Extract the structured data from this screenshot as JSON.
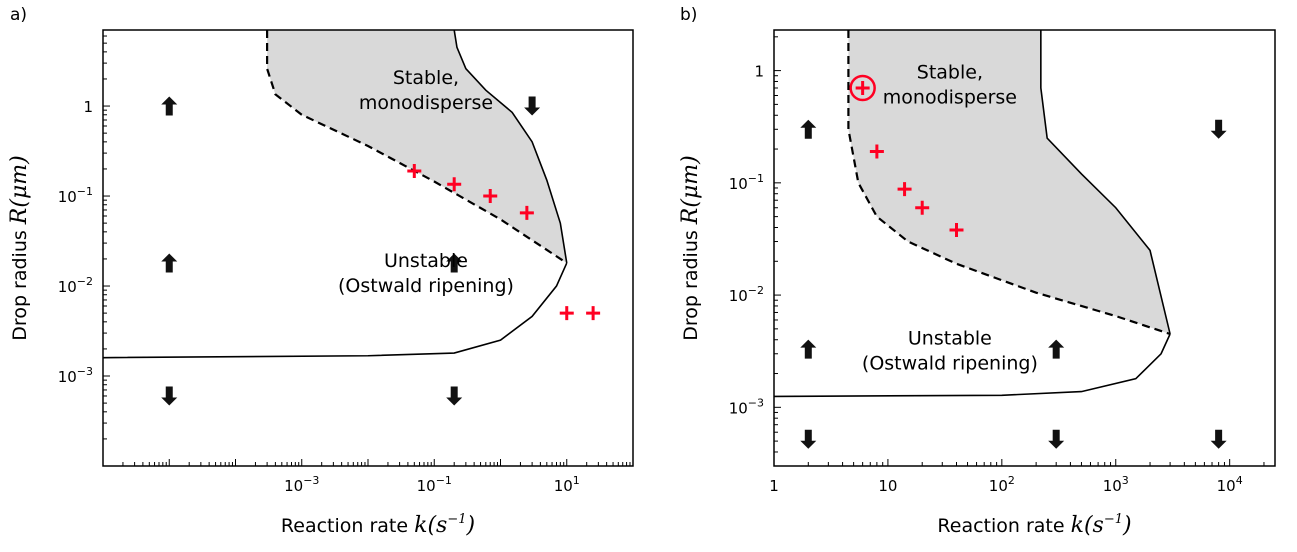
{
  "chart_data": [
    {
      "panel_label": "a)",
      "type": "scatter",
      "xscale": "log",
      "yscale": "log",
      "xlim": [
        1e-06,
        100
      ],
      "ylim": [
        0.0001,
        7
      ],
      "xticks": [
        {
          "value": 0.001,
          "label": "10^-3"
        },
        {
          "value": 0.1,
          "label": "10^-1"
        },
        {
          "value": 10,
          "label": "10^1"
        }
      ],
      "yticks": [
        {
          "value": 0.001,
          "label": "10^-3"
        },
        {
          "value": 0.01,
          "label": "10^-2"
        },
        {
          "value": 0.1,
          "label": "10^-1"
        },
        {
          "value": 1,
          "label": "1"
        }
      ],
      "xlabel": "Reaction rate",
      "xlabel_math": "k(s^-1)",
      "ylabel": "Drop radius",
      "ylabel_math": "R(μm)",
      "annotations": [
        {
          "lines": [
            "Stable,",
            "monodisperse"
          ],
          "x": 0.075,
          "y": 1.5
        },
        {
          "lines": [
            "Unstable",
            "(Ostwald ripening)"
          ],
          "x": 0.075,
          "y": 0.014
        }
      ],
      "stable_region_fill": "#d9d9d9",
      "dashed_boundary": [
        [
          0.0003,
          7
        ],
        [
          0.0003,
          2.6
        ],
        [
          0.0004,
          1.35
        ],
        [
          0.001,
          0.8
        ],
        [
          0.01,
          0.36
        ],
        [
          0.1,
          0.145
        ],
        [
          1,
          0.055
        ],
        [
          10,
          0.018
        ]
      ],
      "upper_solid_boundary": [
        [
          0.2,
          7
        ],
        [
          0.22,
          4.5
        ],
        [
          0.3,
          2.6
        ],
        [
          0.6,
          1.5
        ],
        [
          1.5,
          0.85
        ],
        [
          3,
          0.4
        ],
        [
          5,
          0.15
        ],
        [
          8,
          0.05
        ],
        [
          10,
          0.018
        ]
      ],
      "lower_solid_boundary": [
        [
          1e-06,
          0.0016
        ],
        [
          0.01,
          0.00168
        ],
        [
          0.2,
          0.0018
        ],
        [
          1,
          0.0025
        ],
        [
          3,
          0.0046
        ],
        [
          7,
          0.01
        ],
        [
          10,
          0.018
        ]
      ],
      "series": [
        {
          "name": "",
          "marker": "plus",
          "color": "#ff0022",
          "points": [
            [
              0.05,
              0.19
            ],
            [
              0.2,
              0.135
            ],
            [
              0.7,
              0.1
            ],
            [
              2.5,
              0.065
            ],
            [
              10,
              0.005
            ],
            [
              25,
              0.005
            ]
          ]
        }
      ],
      "arrows": [
        {
          "x": 1e-05,
          "y": 1,
          "dir": "up"
        },
        {
          "x": 1e-05,
          "y": 0.018,
          "dir": "up"
        },
        {
          "x": 1e-05,
          "y": 0.0006,
          "dir": "down"
        },
        {
          "x": 0.2,
          "y": 0.018,
          "dir": "up"
        },
        {
          "x": 0.2,
          "y": 0.0006,
          "dir": "down"
        },
        {
          "x": 3,
          "y": 1,
          "dir": "down"
        }
      ]
    },
    {
      "panel_label": "b)",
      "type": "scatter",
      "xscale": "log",
      "yscale": "log",
      "xlim": [
        1,
        25000
      ],
      "ylim": [
        0.0003,
        2.3
      ],
      "xticks": [
        {
          "value": 1,
          "label": "1"
        },
        {
          "value": 10,
          "label": "10"
        },
        {
          "value": 100,
          "label": "10^2"
        },
        {
          "value": 1000,
          "label": "10^3"
        },
        {
          "value": 10000,
          "label": "10^4"
        }
      ],
      "yticks": [
        {
          "value": 0.001,
          "label": "10^-3"
        },
        {
          "value": 0.01,
          "label": "10^-2"
        },
        {
          "value": 0.1,
          "label": "10^-1"
        },
        {
          "value": 1,
          "label": "1"
        }
      ],
      "xlabel": "Reaction rate",
      "xlabel_math": "k(s^-1)",
      "ylabel": "Drop radius",
      "ylabel_math": "R(μm)",
      "annotations": [
        {
          "lines": [
            "Stable,",
            "monodisperse"
          ],
          "x": 35,
          "y": 0.75
        },
        {
          "lines": [
            "Unstable",
            "(Ostwald ripening)"
          ],
          "x": 35,
          "y": 0.0032
        }
      ],
      "stable_region_fill": "#d9d9d9",
      "dashed_boundary": [
        [
          4.5,
          2.3
        ],
        [
          4.5,
          0.3
        ],
        [
          5.5,
          0.1
        ],
        [
          8,
          0.05
        ],
        [
          15,
          0.03
        ],
        [
          40,
          0.019
        ],
        [
          200,
          0.0105
        ],
        [
          1000,
          0.0065
        ],
        [
          3000,
          0.0045
        ]
      ],
      "upper_solid_boundary": [
        [
          220,
          2.3
        ],
        [
          220,
          0.7
        ],
        [
          250,
          0.25
        ],
        [
          500,
          0.12
        ],
        [
          1000,
          0.06
        ],
        [
          2000,
          0.025
        ],
        [
          3000,
          0.0045
        ]
      ],
      "lower_solid_boundary": [
        [
          1,
          0.00125
        ],
        [
          100,
          0.00128
        ],
        [
          500,
          0.00138
        ],
        [
          1500,
          0.0018
        ],
        [
          2500,
          0.003
        ],
        [
          3000,
          0.0045
        ]
      ],
      "series": [
        {
          "name": "",
          "marker": "plus",
          "color": "#ff0022",
          "points": [
            [
              6,
              0.7
            ],
            [
              8,
              0.19
            ],
            [
              14,
              0.088
            ],
            [
              20,
              0.06
            ],
            [
              40,
              0.038
            ]
          ]
        }
      ],
      "highlight_circle": {
        "x": 6,
        "y": 0.7,
        "color": "#ff0022"
      },
      "arrows": [
        {
          "x": 2,
          "y": 0.3,
          "dir": "up"
        },
        {
          "x": 2,
          "y": 0.0033,
          "dir": "up"
        },
        {
          "x": 2,
          "y": 0.00052,
          "dir": "down"
        },
        {
          "x": 300,
          "y": 0.0033,
          "dir": "up"
        },
        {
          "x": 300,
          "y": 0.00052,
          "dir": "down"
        },
        {
          "x": 8000,
          "y": 0.3,
          "dir": "down"
        },
        {
          "x": 8000,
          "y": 0.00052,
          "dir": "down"
        }
      ]
    }
  ]
}
